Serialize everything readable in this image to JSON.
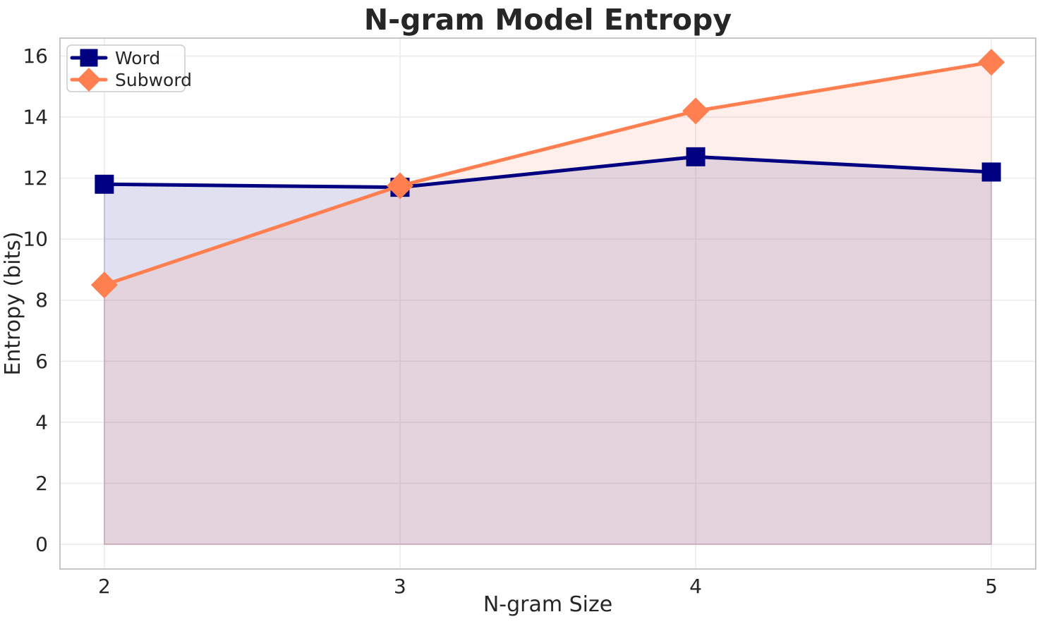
{
  "chart_data": {
    "type": "line",
    "title": "N-gram Model Entropy",
    "xlabel": "N-gram Size",
    "ylabel": "Entropy (bits)",
    "x": [
      2,
      3,
      4,
      5
    ],
    "series": [
      {
        "name": "Word",
        "values": [
          11.8,
          11.7,
          12.7,
          12.2
        ],
        "color": "#000080",
        "marker": "square"
      },
      {
        "name": "Subword",
        "values": [
          8.5,
          11.75,
          14.2,
          15.8
        ],
        "color": "#FF7F50",
        "marker": "diamond"
      }
    ],
    "fill_to_zero": true,
    "fill_alpha": 0.12,
    "xticks": [
      2,
      3,
      4,
      5
    ],
    "yticks": [
      0,
      2,
      4,
      6,
      8,
      10,
      12,
      14,
      16
    ],
    "xlim": [
      1.85,
      5.15
    ],
    "ylim": [
      -0.81,
      16.59
    ],
    "grid": true,
    "legend_position": "upper-left",
    "colors": {
      "text": "#262626",
      "grid": "#ECECEC",
      "spine": "#C6C6C6",
      "background": "#FFFFFF",
      "legend_border": "#CCCCCC"
    }
  }
}
